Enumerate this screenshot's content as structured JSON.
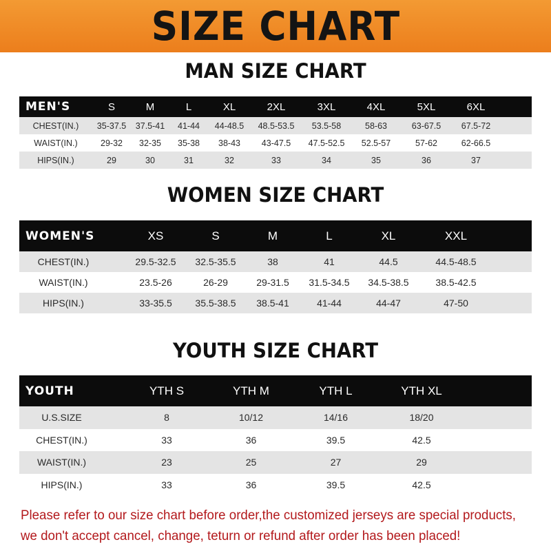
{
  "banner_title": "SIZE CHART",
  "colors": {
    "banner": "#ef8a24",
    "header_row": "#0c0c0c",
    "note_text": "#b3191c"
  },
  "men": {
    "title": "MAN SIZE CHART",
    "header": [
      "MEN'S",
      "S",
      "M",
      "L",
      "XL",
      "2XL",
      "3XL",
      "4XL",
      "5XL",
      "6XL"
    ],
    "rows": [
      [
        "CHEST(IN.)",
        "35-37.5",
        "37.5-41",
        "41-44",
        "44-48.5",
        "48.5-53.5",
        "53.5-58",
        "58-63",
        "63-67.5",
        "67.5-72"
      ],
      [
        "WAIST(IN.)",
        "29-32",
        "32-35",
        "35-38",
        "38-43",
        "43-47.5",
        "47.5-52.5",
        "52.5-57",
        "57-62",
        "62-66.5"
      ],
      [
        "HIPS(IN.)",
        "29",
        "30",
        "31",
        "32",
        "33",
        "34",
        "35",
        "36",
        "37"
      ]
    ]
  },
  "women": {
    "title": "WOMEN SIZE CHART",
    "header": [
      "WOMEN'S",
      "XS",
      "S",
      "M",
      "L",
      "XL",
      "XXL"
    ],
    "rows": [
      [
        "CHEST(IN.)",
        "29.5-32.5",
        "32.5-35.5",
        "38",
        "41",
        "44.5",
        "44.5-48.5"
      ],
      [
        "WAIST(IN.)",
        "23.5-26",
        "26-29",
        "29-31.5",
        "31.5-34.5",
        "34.5-38.5",
        "38.5-42.5"
      ],
      [
        "HIPS(IN.)",
        "33-35.5",
        "35.5-38.5",
        "38.5-41",
        "41-44",
        "44-47",
        "47-50"
      ]
    ]
  },
  "youth": {
    "title": "YOUTH SIZE CHART",
    "header": [
      "YOUTH",
      "YTH S",
      "YTH M",
      "YTH L",
      "YTH XL"
    ],
    "rows": [
      [
        "U.S.SIZE",
        "8",
        "10/12",
        "14/16",
        "18/20"
      ],
      [
        "CHEST(IN.)",
        "33",
        "36",
        "39.5",
        "42.5"
      ],
      [
        "WAIST(IN.)",
        "23",
        "25",
        "27",
        "29"
      ],
      [
        "HIPS(IN.)",
        "33",
        "36",
        "39.5",
        "42.5"
      ]
    ]
  },
  "note": {
    "line1": "Please refer to our size chart before order,the customized jerseys are special products,",
    "line2": "we don't accept cancel, change, teturn or refund after order has been placed!"
  }
}
